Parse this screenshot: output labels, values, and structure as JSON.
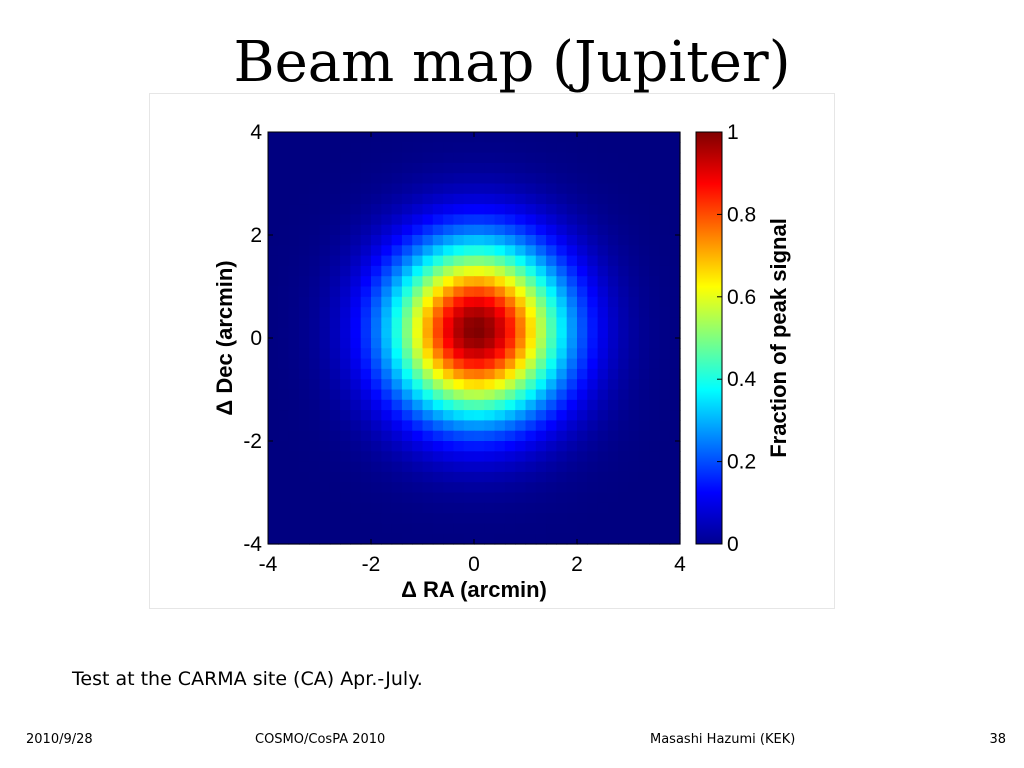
{
  "slide": {
    "title": "Beam map (Jupiter)",
    "caption": "Test at the CARMA site (CA) Apr.-July.",
    "footer": {
      "date": "2010/9/28",
      "conference": "COSMO/CosPA 2010",
      "author": "Masashi Hazumi (KEK)",
      "page": "38"
    }
  },
  "chart_data": {
    "type": "heatmap",
    "title": "",
    "xlabel": "Δ RA (arcmin)",
    "ylabel": "Δ Dec (arcmin)",
    "xlim": [
      -4,
      4
    ],
    "ylim": [
      -4,
      4
    ],
    "xticks": [
      "-4",
      "-2",
      "0",
      "2",
      "4"
    ],
    "yticks": [
      "-4",
      "-2",
      "0",
      "2",
      "4"
    ],
    "colorbar": {
      "label": "Fraction of peak signal",
      "range": [
        0,
        1
      ],
      "ticks": [
        "0",
        "0.2",
        "0.4",
        "0.6",
        "0.8",
        "1"
      ],
      "colormap": "jet"
    },
    "grid": false,
    "resolution_arcmin": 0.2,
    "beam_model": {
      "shape": "gaussian",
      "peak": 1,
      "center_ra_arcmin": 0.05,
      "center_dec_arcmin": 0.15,
      "sigma_arcmin": 1.15
    }
  }
}
